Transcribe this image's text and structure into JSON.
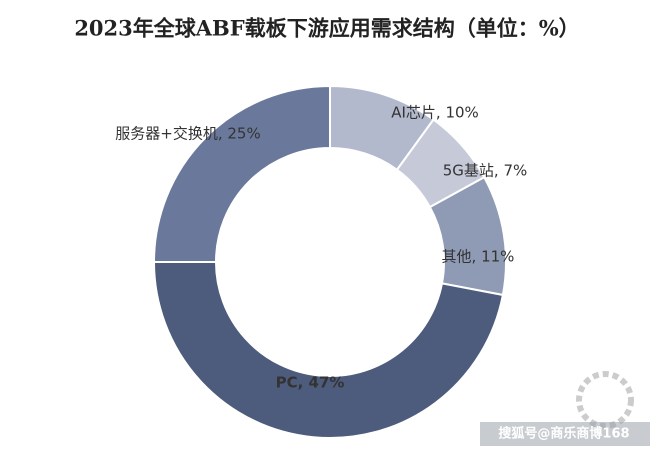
{
  "chart_data": {
    "type": "donut",
    "title": "2023年全球ABF载板下游应用需求结构（单位：%）",
    "labels": [
      "AI芯片, 10%",
      "5G基站, 7%",
      "其他, 11%",
      "PC, 47%",
      "服务器+交换机, 25%"
    ],
    "values": [
      10,
      7,
      11,
      47,
      25
    ],
    "colors": [
      "#b3b9cc",
      "#c6cad8",
      "#8f9ab4",
      "#4d5b7c",
      "#6a799b"
    ],
    "watermark": "搜狐号@商乐商博168"
  }
}
